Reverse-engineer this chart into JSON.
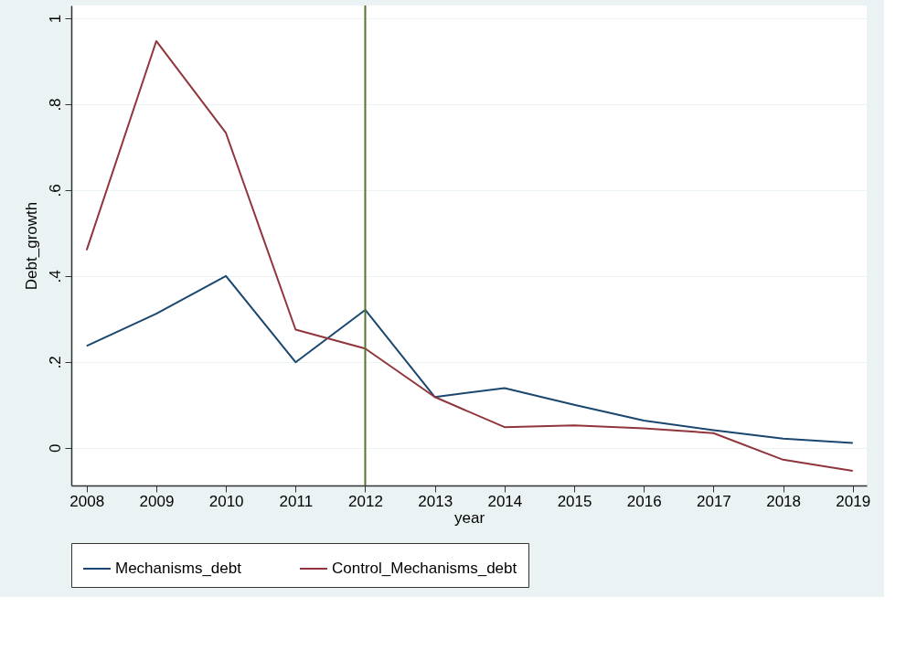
{
  "chart_data": {
    "type": "line",
    "xlabel": "year",
    "ylabel": "Debt_growth",
    "x": [
      2008,
      2009,
      2010,
      2011,
      2012,
      2013,
      2014,
      2015,
      2016,
      2017,
      2018,
      2019
    ],
    "series": [
      {
        "name": "Mechanisms_debt",
        "color": "#1a476f",
        "values": [
          0.237,
          0.312,
          0.4,
          0.199,
          0.321,
          0.118,
          0.139,
          0.1,
          0.063,
          0.041,
          0.021,
          0.011
        ]
      },
      {
        "name": "Control_Mechanisms_debt",
        "color": "#90353b",
        "values": [
          0.46,
          0.947,
          0.733,
          0.275,
          0.231,
          0.118,
          0.048,
          0.052,
          0.045,
          0.034,
          -0.028,
          -0.054
        ]
      }
    ],
    "xlim": [
      2007.78,
      2019.2
    ],
    "xticks": [
      2008,
      2009,
      2010,
      2011,
      2012,
      2013,
      2014,
      2015,
      2016,
      2017,
      2018,
      2019
    ],
    "ylim": [
      -0.088,
      1.03
    ],
    "yticks": [
      {
        "value": 0,
        "label": "0"
      },
      {
        "value": 0.2,
        "label": ".2"
      },
      {
        "value": 0.4,
        "label": ".4"
      },
      {
        "value": 0.6,
        "label": ".6"
      },
      {
        "value": 0.8,
        "label": ".8"
      },
      {
        "value": 1,
        "label": "1"
      }
    ],
    "ref_lines": [
      {
        "axis": "x",
        "value": 2012,
        "label": null,
        "color": "#55752f"
      }
    ],
    "grid": "y",
    "legend": "bottom",
    "marker": "none",
    "line_style": "solid"
  }
}
